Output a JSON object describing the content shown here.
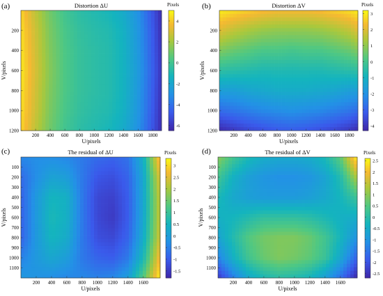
{
  "panels": [
    {
      "letter": "(a)",
      "title": "Distortion ΔU",
      "xlabel": "U/pixels",
      "ylabel": "V/pixels",
      "cb_label": "Pixels",
      "x_ticks": [
        "200",
        "400",
        "600",
        "800",
        "1000",
        "1200",
        "1400",
        "1600",
        "1800"
      ],
      "y_ticks": [
        "200",
        "400",
        "600",
        "800",
        "1000",
        "1200"
      ],
      "cb_ticks": [
        "4",
        "2",
        "0",
        "-2",
        "-4",
        "-6"
      ]
    },
    {
      "letter": "(b)",
      "title": "Distortion ΔV",
      "xlabel": "U/pixels",
      "ylabel": "V/pixels",
      "cb_label": "Pixels",
      "x_ticks": [
        "200",
        "400",
        "600",
        "800",
        "1000",
        "1200",
        "1400",
        "1600",
        "1800"
      ],
      "y_ticks": [
        "200",
        "400",
        "600",
        "800",
        "1000",
        "1200"
      ],
      "cb_ticks": [
        "3",
        "2",
        "1",
        "0",
        "-1",
        "-2",
        "-3",
        "-4"
      ]
    },
    {
      "letter": "(c)",
      "title": "The residual of ΔU",
      "xlabel": "U/pixels",
      "ylabel": "V/pixels",
      "cb_label": "Pixels",
      "x_ticks": [
        "200",
        "400",
        "600",
        "800",
        "1000",
        "1200",
        "1400",
        "1600"
      ],
      "y_ticks": [
        "1100",
        "1000",
        "900",
        "800",
        "700",
        "600",
        "500",
        "400",
        "300",
        "200",
        "100"
      ],
      "cb_ticks": [
        "3",
        "2.5",
        "2",
        "1.5",
        "1",
        "0.5",
        "0",
        "-0.5",
        "-1",
        "-1.5"
      ]
    },
    {
      "letter": "(d)",
      "title": "The residual of ΔV",
      "xlabel": "U/pixels",
      "ylabel": "V/pixels",
      "cb_label": "Pixels",
      "x_ticks": [
        "200",
        "400",
        "600",
        "800",
        "1000",
        "1200",
        "1400",
        "1600"
      ],
      "y_ticks": [
        "1100",
        "1000",
        "900",
        "800",
        "700",
        "600",
        "500",
        "400",
        "300",
        "200",
        "100"
      ],
      "cb_ticks": [
        "2.5",
        "2",
        "1.5",
        "1",
        "0.5",
        "0",
        "-0.5",
        "-1",
        "-1.5",
        "-2",
        "-2.5"
      ]
    }
  ],
  "chart_data": [
    {
      "type": "heatmap",
      "title": "Distortion ΔU",
      "xlabel": "U/pixels",
      "ylabel": "V/pixels",
      "colorbar_label": "Pixels",
      "xlim": [
        0,
        1920
      ],
      "ylim": [
        1200,
        0
      ],
      "clim": [
        -6.5,
        5
      ],
      "colormap": "parula",
      "x": [
        0,
        200,
        400,
        600,
        800,
        1000,
        1200,
        1400,
        1600,
        1800,
        1920
      ],
      "y": [
        0,
        200,
        400,
        600,
        800,
        1000,
        1200
      ],
      "z": [
        [
          4.2,
          2.5,
          1.0,
          0.0,
          -0.6,
          -0.9,
          -1.2,
          -1.8,
          -3.0,
          -5.0,
          -6.3
        ],
        [
          4.4,
          2.8,
          1.2,
          0.2,
          -0.4,
          -0.7,
          -0.9,
          -1.5,
          -2.8,
          -4.8,
          -6.2
        ],
        [
          4.5,
          2.9,
          1.3,
          0.3,
          -0.3,
          -0.6,
          -0.8,
          -1.4,
          -2.7,
          -4.7,
          -6.1
        ],
        [
          4.6,
          3.0,
          1.4,
          0.3,
          -0.3,
          -0.6,
          -0.8,
          -1.4,
          -2.6,
          -4.6,
          -6.0
        ],
        [
          4.5,
          2.9,
          1.3,
          0.3,
          -0.3,
          -0.6,
          -0.8,
          -1.4,
          -2.7,
          -4.7,
          -6.1
        ],
        [
          4.4,
          2.8,
          1.2,
          0.2,
          -0.4,
          -0.7,
          -0.9,
          -1.5,
          -2.8,
          -4.8,
          -6.2
        ],
        [
          4.2,
          2.5,
          1.0,
          0.0,
          -0.6,
          -0.9,
          -1.2,
          -1.8,
          -3.0,
          -5.0,
          -6.3
        ]
      ]
    },
    {
      "type": "heatmap",
      "title": "Distortion ΔV",
      "xlabel": "U/pixels",
      "ylabel": "V/pixels",
      "colorbar_label": "Pixels",
      "xlim": [
        0,
        1920
      ],
      "ylim": [
        1200,
        0
      ],
      "clim": [
        -4.3,
        3.2
      ],
      "colormap": "parula",
      "x": [
        0,
        200,
        400,
        600,
        800,
        1000,
        1200,
        1400,
        1600,
        1800,
        1920
      ],
      "y": [
        0,
        200,
        400,
        600,
        800,
        1000,
        1200
      ],
      "z": [
        [
          3.0,
          2.8,
          2.6,
          2.4,
          2.3,
          2.3,
          2.3,
          2.4,
          2.6,
          2.8,
          3.0
        ],
        [
          2.0,
          1.6,
          1.3,
          1.1,
          1.0,
          1.0,
          1.0,
          1.1,
          1.3,
          1.6,
          2.0
        ],
        [
          0.8,
          0.5,
          0.3,
          0.1,
          0.1,
          0.0,
          0.1,
          0.1,
          0.3,
          0.5,
          0.8
        ],
        [
          -0.4,
          -0.5,
          -0.6,
          -0.7,
          -0.7,
          -0.7,
          -0.7,
          -0.7,
          -0.6,
          -0.5,
          -0.4
        ],
        [
          -1.6,
          -1.6,
          -1.4,
          -1.3,
          -1.2,
          -1.2,
          -1.2,
          -1.3,
          -1.4,
          -1.6,
          -1.6
        ],
        [
          -2.8,
          -2.6,
          -2.4,
          -2.2,
          -2.1,
          -2.0,
          -2.1,
          -2.2,
          -2.4,
          -2.6,
          -2.8
        ],
        [
          -4.2,
          -3.9,
          -3.6,
          -3.4,
          -3.2,
          -3.1,
          -3.2,
          -3.4,
          -3.6,
          -3.9,
          -4.2
        ]
      ]
    },
    {
      "type": "heatmap",
      "title": "The residual of ΔU",
      "xlabel": "U/pixels",
      "ylabel": "V/pixels",
      "colorbar_label": "Pixels",
      "xlim": [
        0,
        1820
      ],
      "ylim": [
        1200,
        0
      ],
      "clim": [
        -1.8,
        3.3
      ],
      "colormap": "parula",
      "x": [
        0,
        200,
        400,
        600,
        800,
        1000,
        1200,
        1400,
        1600,
        1800
      ],
      "y": [
        0,
        200,
        400,
        600,
        800,
        1000,
        1200
      ],
      "z": [
        [
          -0.4,
          -0.3,
          -0.3,
          -0.4,
          -0.6,
          -0.8,
          -0.9,
          -0.7,
          0.4,
          2.8
        ],
        [
          -0.8,
          -0.3,
          0.1,
          0.0,
          -0.6,
          -1.1,
          -1.2,
          -0.9,
          0.2,
          2.3
        ],
        [
          -0.9,
          -0.1,
          0.5,
          0.4,
          -0.6,
          -1.3,
          -1.4,
          -1.0,
          0.2,
          2.1
        ],
        [
          -0.9,
          -0.1,
          0.6,
          0.4,
          -0.6,
          -1.3,
          -1.5,
          -1.0,
          0.2,
          2.1
        ],
        [
          -0.9,
          -0.1,
          0.5,
          0.3,
          -0.6,
          -1.2,
          -1.3,
          -0.9,
          0.3,
          2.2
        ],
        [
          -0.5,
          -0.1,
          0.2,
          0.0,
          -0.6,
          -0.9,
          -1.0,
          -0.6,
          0.6,
          2.6
        ],
        [
          -0.1,
          -0.2,
          -0.3,
          -0.4,
          -0.4,
          -0.5,
          -0.4,
          0.0,
          1.3,
          3.1
        ]
      ]
    },
    {
      "type": "heatmap",
      "title": "The residual of ΔV",
      "xlabel": "U/pixels",
      "ylabel": "V/pixels",
      "colorbar_label": "Pixels",
      "xlim": [
        0,
        1820
      ],
      "ylim": [
        1200,
        0
      ],
      "clim": [
        -2.7,
        2.6
      ],
      "colormap": "parula",
      "x": [
        0,
        200,
        400,
        600,
        800,
        1000,
        1200,
        1400,
        1600,
        1800
      ],
      "y": [
        0,
        200,
        400,
        600,
        800,
        1000,
        1200
      ],
      "z": [
        [
          1.0,
          0.3,
          -0.2,
          -0.5,
          -0.6,
          -0.6,
          -0.5,
          -0.2,
          0.6,
          2.4
        ],
        [
          0.3,
          -0.4,
          -0.8,
          -1.0,
          -1.1,
          -1.1,
          -1.0,
          -0.7,
          -0.1,
          1.2
        ],
        [
          -0.2,
          -0.6,
          -0.8,
          -0.9,
          -0.9,
          -0.9,
          -0.8,
          -0.6,
          -0.3,
          0.2
        ],
        [
          -0.4,
          -0.3,
          -0.1,
          0.1,
          0.1,
          0.1,
          0.0,
          -0.2,
          -0.4,
          -0.5
        ],
        [
          -0.7,
          -0.1,
          0.5,
          0.8,
          0.9,
          0.9,
          0.7,
          0.3,
          -0.3,
          -1.0
        ],
        [
          -1.3,
          -0.4,
          0.3,
          0.7,
          0.9,
          0.8,
          0.6,
          0.2,
          -0.6,
          -1.7
        ],
        [
          -2.4,
          -1.4,
          -0.6,
          -0.2,
          0.0,
          -0.1,
          -0.3,
          -0.8,
          -1.6,
          -2.6
        ]
      ]
    }
  ]
}
